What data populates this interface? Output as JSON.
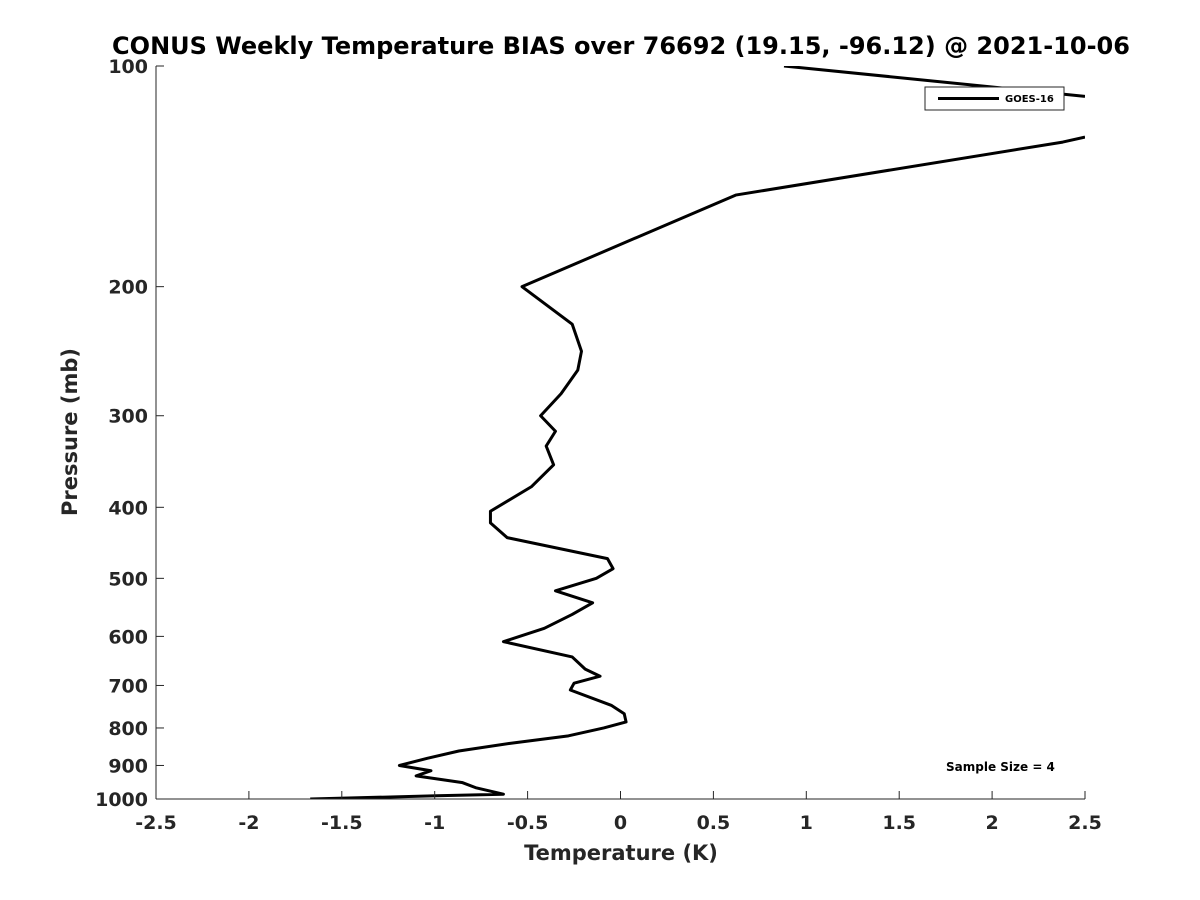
{
  "chart_data": {
    "type": "line",
    "title": "CONUS Weekly Temperature BIAS over 76692 (19.15, -96.12) @ 2021-10-06",
    "xlabel": "Temperature (K)",
    "ylabel": "Pressure (mb)",
    "xlim": [
      -2.5,
      2.5
    ],
    "ylim": [
      1000,
      100
    ],
    "y_scale": "log",
    "y_reversed": true,
    "grid": false,
    "legend_position": "top-right",
    "x_ticks": [
      "-2.5",
      "-2",
      "-1.5",
      "-1",
      "-0.5",
      "0",
      "0.5",
      "1",
      "1.5",
      "2",
      "2.5"
    ],
    "x_tick_values": [
      -2.5,
      -2,
      -1.5,
      -1,
      -0.5,
      0,
      0.5,
      1,
      1.5,
      2,
      2.5
    ],
    "y_ticks": [
      "100",
      "200",
      "300",
      "400",
      "500",
      "600",
      "700",
      "800",
      "900",
      "1000"
    ],
    "y_tick_values": [
      100,
      200,
      300,
      400,
      500,
      600,
      700,
      800,
      900,
      1000
    ],
    "series": [
      {
        "name": "GOES-16",
        "color": "#000000",
        "segments": [
          {
            "points": [
              [
                0.88,
                100
              ],
              [
                2.5,
                110
              ]
            ]
          },
          {
            "points": [
              [
                2.5,
                125
              ],
              [
                2.38,
                127
              ],
              [
                0.62,
                150
              ],
              [
                -0.53,
                200
              ],
              [
                -0.26,
                225
              ],
              [
                -0.21,
                245
              ],
              [
                -0.23,
                260
              ],
              [
                -0.32,
                280
              ],
              [
                -0.43,
                300
              ],
              [
                -0.35,
                315
              ],
              [
                -0.4,
                330
              ],
              [
                -0.36,
                350
              ],
              [
                -0.48,
                375
              ],
              [
                -0.7,
                405
              ],
              [
                -0.7,
                420
              ],
              [
                -0.61,
                440
              ],
              [
                -0.07,
                470
              ],
              [
                -0.04,
                485
              ],
              [
                -0.13,
                500
              ],
              [
                -0.35,
                520
              ],
              [
                -0.15,
                540
              ],
              [
                -0.26,
                560
              ],
              [
                -0.41,
                585
              ],
              [
                -0.63,
                610
              ],
              [
                -0.26,
                640
              ],
              [
                -0.19,
                665
              ],
              [
                -0.11,
                680
              ],
              [
                -0.25,
                695
              ],
              [
                -0.27,
                710
              ],
              [
                -0.05,
                745
              ],
              [
                0.02,
                765
              ],
              [
                0.03,
                785
              ],
              [
                -0.09,
                800
              ],
              [
                -0.28,
                820
              ],
              [
                -0.6,
                840
              ],
              [
                -0.87,
                860
              ],
              [
                -1.04,
                880
              ],
              [
                -1.19,
                900
              ],
              [
                -1.02,
                915
              ],
              [
                -1.1,
                930
              ],
              [
                -0.85,
                950
              ],
              [
                -0.78,
                965
              ],
              [
                -0.63,
                985
              ],
              [
                -0.99,
                990
              ],
              [
                -1.67,
                1000
              ]
            ]
          }
        ]
      }
    ],
    "annotation": "Sample Size = 4"
  }
}
